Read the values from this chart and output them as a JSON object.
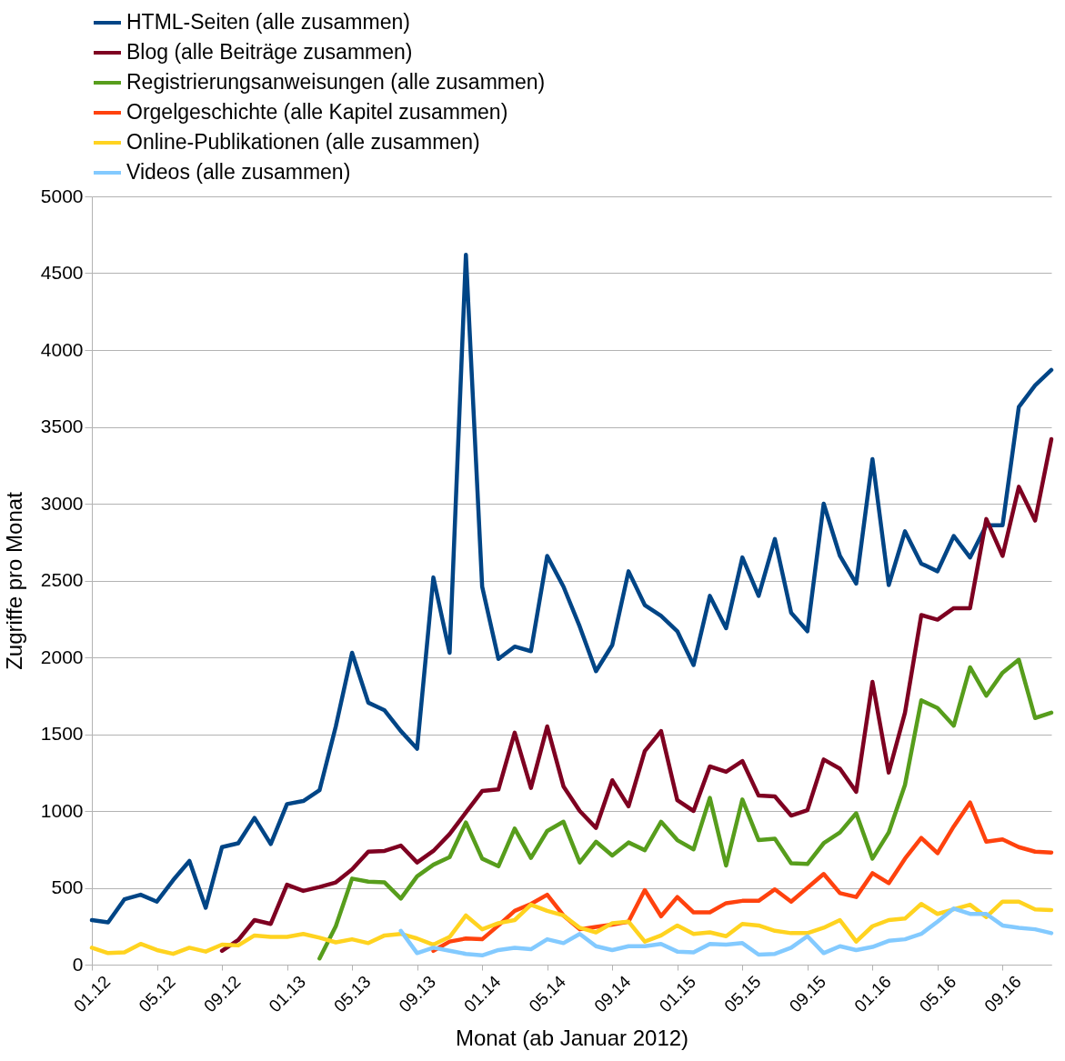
{
  "chart_data": {
    "type": "line",
    "xlabel": "Monat (ab Januar 2012)",
    "ylabel": "Zugriffe pro Monat",
    "categories": [
      "01.12",
      null,
      null,
      null,
      "05.12",
      null,
      null,
      null,
      "09.12",
      null,
      null,
      null,
      "01.13",
      null,
      null,
      null,
      "05.13",
      null,
      null,
      null,
      "09.13",
      null,
      null,
      null,
      "01.14",
      null,
      null,
      null,
      "05.14",
      null,
      null,
      null,
      "09.14",
      null,
      null,
      null,
      "01.15",
      null,
      null,
      null,
      "05.15",
      null,
      null,
      null,
      "09.15",
      null,
      null,
      null,
      "01.16",
      null,
      null,
      null,
      "05.16",
      null,
      null,
      null,
      "09.16",
      null,
      null,
      null
    ],
    "ylim": [
      0,
      5000
    ],
    "yticks": [
      0,
      500,
      1000,
      1500,
      2000,
      2500,
      3000,
      3500,
      4000,
      4500,
      5000
    ],
    "grid": "y",
    "legend": "top",
    "line_style": "solid",
    "series": [
      {
        "name": "HTML-Seiten (alle zusammen)",
        "color": "#004586",
        "values": [
          290,
          275,
          425,
          455,
          410,
          550,
          675,
          370,
          765,
          790,
          955,
          785,
          1045,
          1065,
          1135,
          1550,
          2030,
          1705,
          1655,
          1520,
          1405,
          2520,
          2030,
          4620,
          2460,
          1990,
          2070,
          2040,
          2660,
          2460,
          2200,
          1910,
          2080,
          2560,
          2340,
          2270,
          2170,
          1950,
          2400,
          2190,
          2650,
          2400,
          2770,
          2290,
          2170,
          3000,
          2660,
          2480,
          3290,
          2470,
          2820,
          2610,
          2560,
          2790,
          2650,
          2860,
          2860,
          3630,
          3770,
          3870
        ]
      },
      {
        "name": "Blog (alle Beiträge zusammen)",
        "color": "#7e0021",
        "values": [
          null,
          null,
          null,
          null,
          null,
          null,
          null,
          null,
          90,
          160,
          290,
          265,
          520,
          480,
          505,
          535,
          620,
          735,
          740,
          775,
          665,
          740,
          850,
          990,
          1130,
          1140,
          1510,
          1150,
          1550,
          1160,
          1000,
          890,
          1200,
          1030,
          1390,
          1520,
          1070,
          1000,
          1290,
          1255,
          1325,
          1100,
          1095,
          970,
          1005,
          1335,
          1275,
          1125,
          1840,
          1250,
          1640,
          2275,
          2245,
          2320,
          2320,
          2900,
          2660,
          3110,
          2890,
          3420
        ]
      },
      {
        "name": "Registrierungsanweisungen (alle zusammen)",
        "color": "#579d1c",
        "values": [
          null,
          null,
          null,
          null,
          null,
          null,
          null,
          null,
          null,
          null,
          null,
          null,
          null,
          null,
          40,
          250,
          560,
          540,
          535,
          430,
          575,
          650,
          700,
          925,
          690,
          640,
          885,
          695,
          870,
          930,
          665,
          800,
          710,
          795,
          745,
          930,
          810,
          750,
          1085,
          645,
          1075,
          810,
          820,
          660,
          655,
          790,
          860,
          985,
          690,
          860,
          1170,
          1720,
          1670,
          1555,
          1935,
          1750,
          1900,
          1985,
          1605,
          1640
        ]
      },
      {
        "name": "Orgelgeschichte (alle Kapitel zusammen)",
        "color": "#ff420e",
        "values": [
          null,
          null,
          null,
          null,
          null,
          null,
          null,
          null,
          null,
          null,
          null,
          null,
          null,
          null,
          null,
          null,
          null,
          null,
          null,
          null,
          null,
          90,
          150,
          170,
          165,
          255,
          350,
          395,
          455,
          320,
          230,
          245,
          260,
          280,
          485,
          315,
          440,
          340,
          340,
          400,
          415,
          415,
          490,
          410,
          500,
          590,
          465,
          440,
          595,
          530,
          690,
          825,
          725,
          900,
          1055,
          800,
          815,
          765,
          735,
          730
        ]
      },
      {
        "name": "Online-Publikationen (alle zusammen)",
        "color": "#ffd320",
        "values": [
          110,
          75,
          80,
          135,
          95,
          70,
          110,
          85,
          130,
          125,
          190,
          180,
          180,
          200,
          175,
          145,
          165,
          140,
          190,
          200,
          170,
          130,
          180,
          320,
          230,
          270,
          290,
          390,
          350,
          320,
          240,
          210,
          270,
          280,
          150,
          190,
          255,
          200,
          210,
          185,
          265,
          255,
          220,
          205,
          205,
          240,
          290,
          150,
          250,
          290,
          300,
          395,
          330,
          360,
          390,
          310,
          410,
          410,
          360,
          355
        ]
      },
      {
        "name": "Videos (alle zusammen)",
        "color": "#83caff",
        "values": [
          null,
          null,
          null,
          null,
          null,
          null,
          null,
          null,
          null,
          null,
          null,
          null,
          null,
          null,
          null,
          null,
          null,
          null,
          null,
          220,
          75,
          110,
          90,
          70,
          60,
          95,
          110,
          100,
          165,
          140,
          200,
          120,
          95,
          120,
          120,
          135,
          85,
          80,
          135,
          130,
          140,
          65,
          70,
          110,
          185,
          75,
          120,
          95,
          115,
          155,
          165,
          200,
          280,
          365,
          330,
          330,
          255,
          240,
          230,
          205
        ]
      }
    ]
  }
}
